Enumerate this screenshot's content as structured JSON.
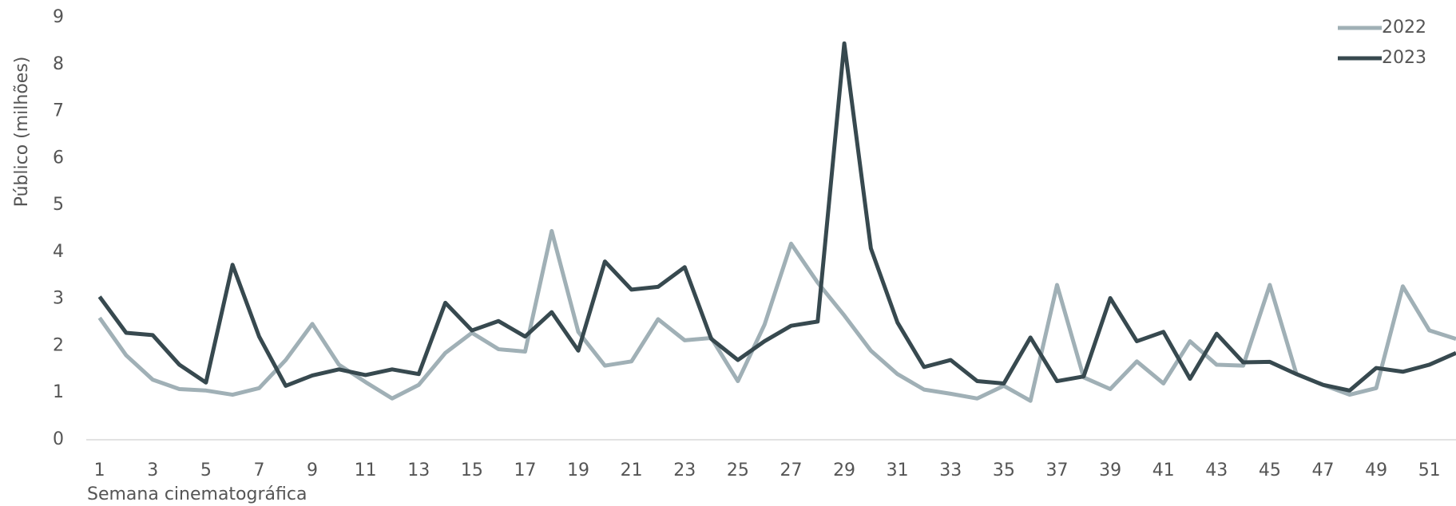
{
  "chart_data": {
    "type": "line",
    "xlabel": "Semana cinematográfica",
    "ylabel": "Público (milhões)",
    "x": [
      1,
      2,
      3,
      4,
      5,
      6,
      7,
      8,
      9,
      10,
      11,
      12,
      13,
      14,
      15,
      16,
      17,
      18,
      19,
      20,
      21,
      22,
      23,
      24,
      25,
      26,
      27,
      28,
      29,
      30,
      31,
      32,
      33,
      34,
      35,
      36,
      37,
      38,
      39,
      40,
      41,
      42,
      43,
      44,
      45,
      46,
      47,
      48,
      49,
      50,
      51,
      52
    ],
    "series": [
      {
        "name": "2022",
        "color": "#a0b0b6",
        "values": [
          2.6,
          1.8,
          1.28,
          1.08,
          1.05,
          0.96,
          1.1,
          1.7,
          2.47,
          1.6,
          1.23,
          0.88,
          1.17,
          1.85,
          2.28,
          1.93,
          1.88,
          4.45,
          2.3,
          1.58,
          1.67,
          2.57,
          2.12,
          2.17,
          1.25,
          2.45,
          4.18,
          3.35,
          2.65,
          1.9,
          1.4,
          1.07,
          0.98,
          0.88,
          1.15,
          0.83,
          3.3,
          1.33,
          1.08,
          1.67,
          1.2,
          2.1,
          1.6,
          1.58,
          3.3,
          1.4,
          1.17,
          0.96,
          1.1,
          3.27,
          2.33,
          2.15
        ]
      },
      {
        "name": "2023",
        "color": "#37494f",
        "values": [
          3.05,
          2.28,
          2.23,
          1.6,
          1.22,
          3.73,
          2.2,
          1.15,
          1.37,
          1.5,
          1.38,
          1.5,
          1.4,
          2.92,
          2.33,
          2.53,
          2.2,
          2.72,
          1.9,
          3.8,
          3.2,
          3.26,
          3.68,
          2.15,
          1.7,
          2.1,
          2.43,
          2.52,
          8.45,
          4.08,
          2.5,
          1.55,
          1.7,
          1.25,
          1.2,
          2.18,
          1.25,
          1.35,
          3.02,
          2.1,
          2.3,
          1.3,
          2.26,
          1.65,
          1.66,
          1.4,
          1.17,
          1.05,
          1.53,
          1.45,
          1.6,
          1.85
        ]
      }
    ],
    "xlim": [
      0.5,
      52
    ],
    "xticks": [
      1,
      3,
      5,
      7,
      9,
      11,
      13,
      15,
      17,
      19,
      21,
      23,
      25,
      27,
      29,
      31,
      33,
      35,
      37,
      39,
      41,
      43,
      45,
      47,
      49,
      51
    ],
    "ylim": [
      0,
      9
    ],
    "yticks": [
      0,
      1,
      2,
      3,
      4,
      5,
      6,
      7,
      8,
      9
    ],
    "legend": "top-right"
  }
}
